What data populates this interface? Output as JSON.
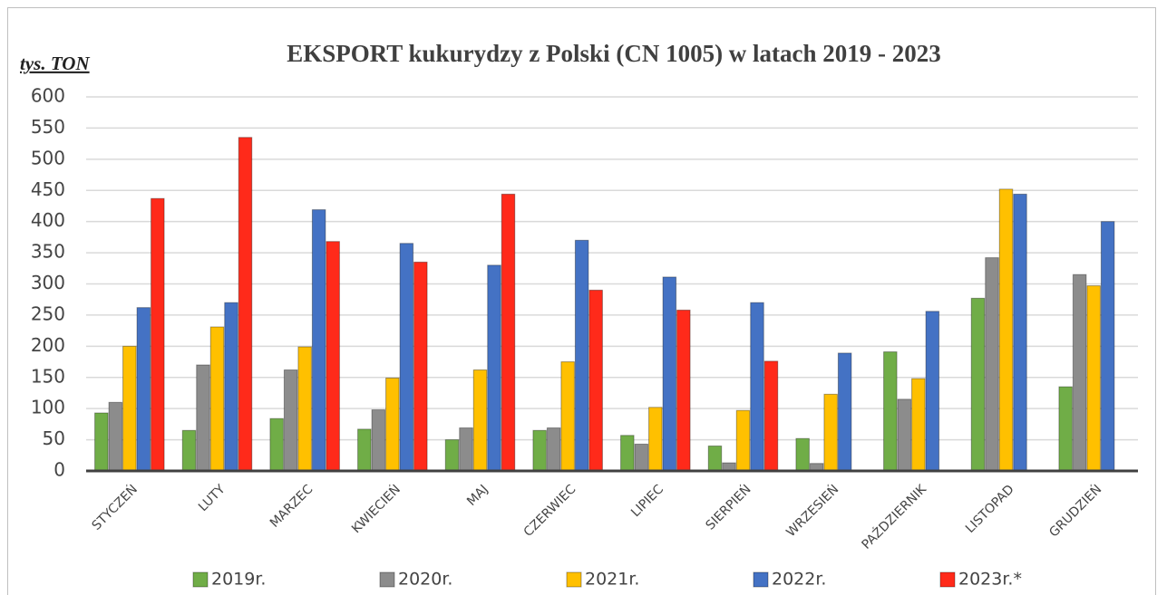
{
  "chart_data": {
    "type": "bar",
    "title": "EKSPORT kukurydzy z Polski (CN 1005) w latach 2019 - 2023",
    "y_label": "tys. TON",
    "categories": [
      "STYCZEŃ",
      "LUTY",
      "MARZEC",
      "KWIECIEŃ",
      "MAJ",
      "CZERWIEC",
      "LIPIEC",
      "SIERPIEŃ",
      "WRZESIEŃ",
      "PAŹDZIERNIK",
      "LISTOPAD",
      "GRUDZIEŃ"
    ],
    "series": [
      {
        "name": "2019r.",
        "color": "#70ad47",
        "values": [
          93,
          65,
          84,
          67,
          50,
          65,
          57,
          40,
          52,
          191,
          277,
          135
        ]
      },
      {
        "name": "2020r.",
        "color": "#8c8c8c",
        "values": [
          110,
          170,
          162,
          98,
          69,
          69,
          43,
          13,
          12,
          115,
          342,
          315
        ]
      },
      {
        "name": "2021r.",
        "color": "#ffc000",
        "values": [
          200,
          231,
          199,
          149,
          162,
          175,
          102,
          97,
          123,
          148,
          452,
          297
        ]
      },
      {
        "name": "2022r.",
        "color": "#4472c4",
        "values": [
          262,
          270,
          419,
          365,
          330,
          370,
          311,
          270,
          189,
          256,
          444,
          400
        ]
      },
      {
        "name": "2023r.*",
        "color": "#ff2a1a",
        "values": [
          437,
          535,
          368,
          335,
          444,
          290,
          258,
          176,
          null,
          null,
          null,
          null
        ]
      }
    ],
    "ylim": [
      0,
      600
    ],
    "yticks": [
      0,
      50,
      100,
      150,
      200,
      250,
      300,
      350,
      400,
      450,
      500,
      550,
      600
    ],
    "grid": true
  }
}
